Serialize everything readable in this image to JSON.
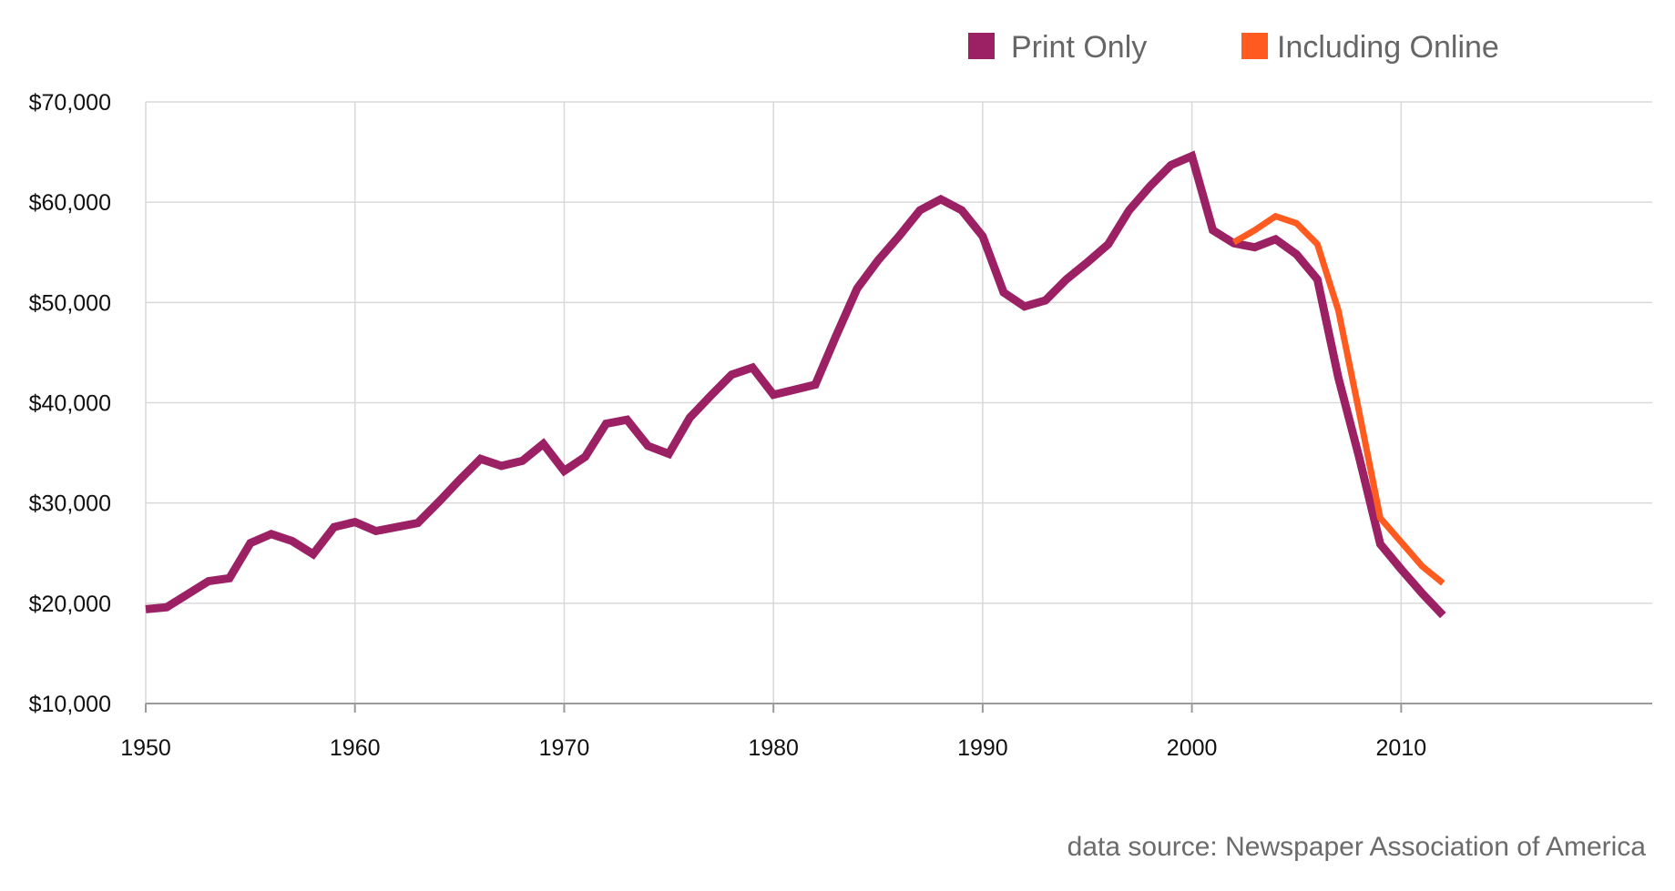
{
  "chart_data": {
    "type": "line",
    "title": "",
    "xlabel": "",
    "ylabel": "",
    "xlim": [
      1950,
      2022
    ],
    "ylim": [
      10000,
      70000
    ],
    "x_ticks": [
      1950,
      1960,
      1970,
      1980,
      1990,
      2000,
      2010
    ],
    "x_tick_labels": [
      "1950",
      "1960",
      "1970",
      "1980",
      "1990",
      "2000",
      "2010"
    ],
    "y_ticks": [
      10000,
      20000,
      30000,
      40000,
      50000,
      60000,
      70000
    ],
    "y_tick_labels": [
      "$10,000",
      "$20,000",
      "$30,000",
      "$40,000",
      "$50,000",
      "$60,000",
      "$70,000"
    ],
    "grid": true,
    "legend_position": "top-right",
    "series": [
      {
        "name": "Print Only",
        "color": "#9b2064",
        "x": [
          1950,
          1951,
          1952,
          1953,
          1954,
          1955,
          1956,
          1957,
          1958,
          1959,
          1960,
          1961,
          1962,
          1963,
          1964,
          1965,
          1966,
          1967,
          1968,
          1969,
          1970,
          1971,
          1972,
          1973,
          1974,
          1975,
          1976,
          1977,
          1978,
          1979,
          1980,
          1981,
          1982,
          1983,
          1984,
          1985,
          1986,
          1987,
          1988,
          1989,
          1990,
          1991,
          1992,
          1993,
          1994,
          1995,
          1996,
          1997,
          1998,
          1999,
          2000,
          2001,
          2002,
          2003,
          2004,
          2005,
          2006,
          2007,
          2008,
          2009,
          2010,
          2011,
          2012
        ],
        "values": [
          19400,
          19600,
          20900,
          22200,
          22500,
          26000,
          26900,
          26200,
          24900,
          27600,
          28100,
          27200,
          27600,
          28000,
          30100,
          32300,
          34400,
          33700,
          34200,
          35900,
          33200,
          34600,
          37900,
          38300,
          35700,
          34900,
          38500,
          40700,
          42800,
          43500,
          40800,
          41300,
          41800,
          46700,
          51400,
          54200,
          56600,
          59200,
          60300,
          59200,
          56600,
          51000,
          49600,
          50200,
          52300,
          54000,
          55800,
          59200,
          61600,
          63700,
          64600,
          57200,
          55900,
          55500,
          56300,
          54800,
          52300,
          42500,
          34500,
          25900,
          23400,
          21000,
          18800
        ]
      },
      {
        "name": "Including Online",
        "color": "#ff5a1f",
        "x": [
          2002,
          2003,
          2004,
          2005,
          2006,
          2007,
          2008,
          2009,
          2010,
          2011,
          2012
        ],
        "values": [
          56000,
          57200,
          58600,
          57900,
          55800,
          49200,
          39000,
          28500,
          26100,
          23700,
          22000
        ]
      }
    ],
    "annotations": [
      "data source: Newspaper Association of America"
    ]
  }
}
